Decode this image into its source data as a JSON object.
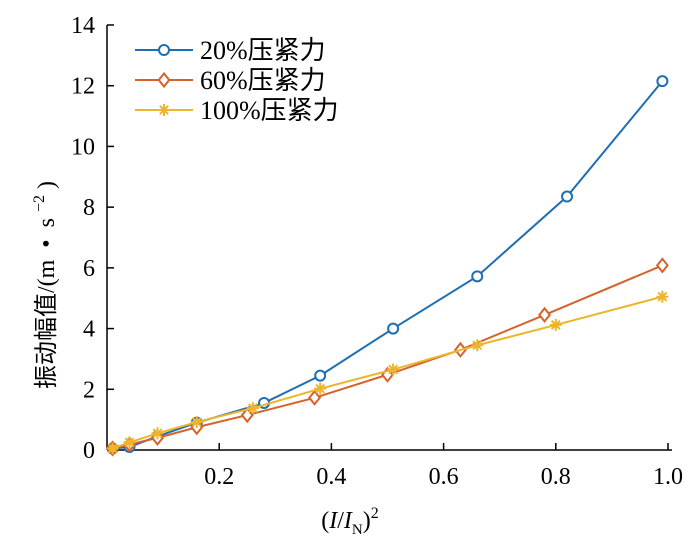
{
  "chart_data": {
    "type": "line",
    "title": "",
    "xlabel": "(I/I_N)^2",
    "xlabel_parts": {
      "open": "(",
      "I": "I",
      "slash": "/",
      "I2": "I",
      "sub": "N",
      "close": ")",
      "sup": "2"
    },
    "ylabel": "振动幅值/(m · s^-2)",
    "ylabel_parts": {
      "main": "振动幅值/(m",
      "dot": "•",
      "s": "s",
      "sup": "−2",
      "close": ")"
    },
    "xlim": [
      0,
      1.0
    ],
    "ylim": [
      0,
      14
    ],
    "xticks": [
      "0.2",
      "0.4",
      "0.6",
      "0.8",
      "1.0"
    ],
    "yticks": [
      "0",
      "2",
      "4",
      "6",
      "8",
      "10",
      "12",
      "14"
    ],
    "legend_position": "top-left",
    "series": [
      {
        "name": "20%压紧力",
        "color": "#1f6eb4",
        "marker": "circle",
        "x": [
          0.01,
          0.04,
          0.09,
          0.16,
          0.28,
          0.38,
          0.51,
          0.66,
          0.82,
          0.99
        ],
        "y": [
          0.05,
          0.1,
          0.45,
          0.9,
          1.55,
          2.45,
          4.0,
          5.72,
          8.35,
          12.15
        ]
      },
      {
        "name": "60%压紧力",
        "color": "#d6622b",
        "marker": "diamond",
        "x": [
          0.01,
          0.04,
          0.09,
          0.16,
          0.25,
          0.37,
          0.5,
          0.63,
          0.78,
          0.99
        ],
        "y": [
          0.05,
          0.18,
          0.4,
          0.75,
          1.15,
          1.72,
          2.48,
          3.3,
          4.45,
          6.08
        ]
      },
      {
        "name": "100%压紧力",
        "color": "#ecb52c",
        "marker": "star",
        "x": [
          0.01,
          0.04,
          0.09,
          0.16,
          0.26,
          0.38,
          0.51,
          0.66,
          0.8,
          0.99
        ],
        "y": [
          0.05,
          0.25,
          0.55,
          0.92,
          1.38,
          2.02,
          2.65,
          3.45,
          4.12,
          5.05
        ]
      }
    ]
  }
}
